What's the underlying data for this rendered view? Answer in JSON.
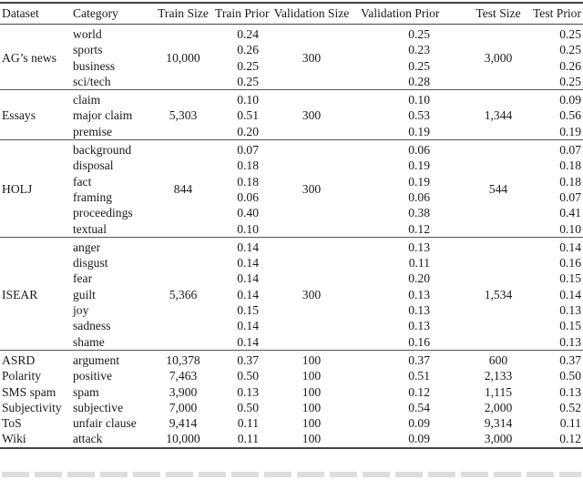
{
  "headers": [
    "Dataset",
    "Category",
    "Train Size",
    "Train Prior",
    "Validation Size",
    "Validation Prior",
    "Test Size",
    "Test Prior"
  ],
  "groups": [
    {
      "dataset": "AG’s news",
      "train_size": "10,000",
      "val_size": "300",
      "test_size": "3,000",
      "rows": [
        [
          "world",
          "0.24",
          "0.25",
          "0.25"
        ],
        [
          "sports",
          "0.26",
          "0.23",
          "0.25"
        ],
        [
          "business",
          "0.25",
          "0.25",
          "0.26"
        ],
        [
          "sci/tech",
          "0.25",
          "0.28",
          "0.25"
        ]
      ]
    },
    {
      "dataset": "Essays",
      "train_size": "5,303",
      "val_size": "300",
      "test_size": "1,344",
      "rows": [
        [
          "claim",
          "0.10",
          "0.10",
          "0.09"
        ],
        [
          "major claim",
          "0.51",
          "0.53",
          "0.56"
        ],
        [
          "premise",
          "0.20",
          "0.19",
          "0.19"
        ]
      ]
    },
    {
      "dataset": "HOLJ",
      "train_size": "844",
      "val_size": "300",
      "test_size": "544",
      "rows": [
        [
          "background",
          "0.07",
          "0.06",
          "0.07"
        ],
        [
          "disposal",
          "0.18",
          "0.19",
          "0.18"
        ],
        [
          "fact",
          "0.18",
          "0.19",
          "0.18"
        ],
        [
          "framing",
          "0.06",
          "0.06",
          "0.07"
        ],
        [
          "proceedings",
          "0.40",
          "0.38",
          "0.41"
        ],
        [
          "textual",
          "0.10",
          "0.12",
          "0.10"
        ]
      ]
    },
    {
      "dataset": "ISEAR",
      "train_size": "5,366",
      "val_size": "300",
      "test_size": "1,534",
      "rows": [
        [
          "anger",
          "0.14",
          "0.13",
          "0.14"
        ],
        [
          "disgust",
          "0.14",
          "0.11",
          "0.16"
        ],
        [
          "fear",
          "0.14",
          "0.20",
          "0.15"
        ],
        [
          "guilt",
          "0.14",
          "0.13",
          "0.14"
        ],
        [
          "joy",
          "0.15",
          "0.13",
          "0.13"
        ],
        [
          "sadness",
          "0.14",
          "0.13",
          "0.15"
        ],
        [
          "shame",
          "0.14",
          "0.16",
          "0.13"
        ]
      ]
    }
  ],
  "binary_rows": [
    [
      "ASRD",
      "argument",
      "10,378",
      "0.37",
      "100",
      "0.37",
      "600",
      "0.37"
    ],
    [
      "Polarity",
      "positive",
      "7,463",
      "0.50",
      "100",
      "0.51",
      "2,133",
      "0.50"
    ],
    [
      "SMS spam",
      "spam",
      "3,900",
      "0.13",
      "100",
      "0.12",
      "1,115",
      "0.13"
    ],
    [
      "Subjectivity",
      "subjective",
      "7,000",
      "0.50",
      "100",
      "0.54",
      "2,000",
      "0.52"
    ],
    [
      "ToS",
      "unfair clause",
      "9,414",
      "0.11",
      "100",
      "0.09",
      "9,314",
      "0.11"
    ],
    [
      "Wiki",
      "attack",
      "10,000",
      "0.11",
      "100",
      "0.09",
      "3,000",
      "0.12"
    ]
  ]
}
